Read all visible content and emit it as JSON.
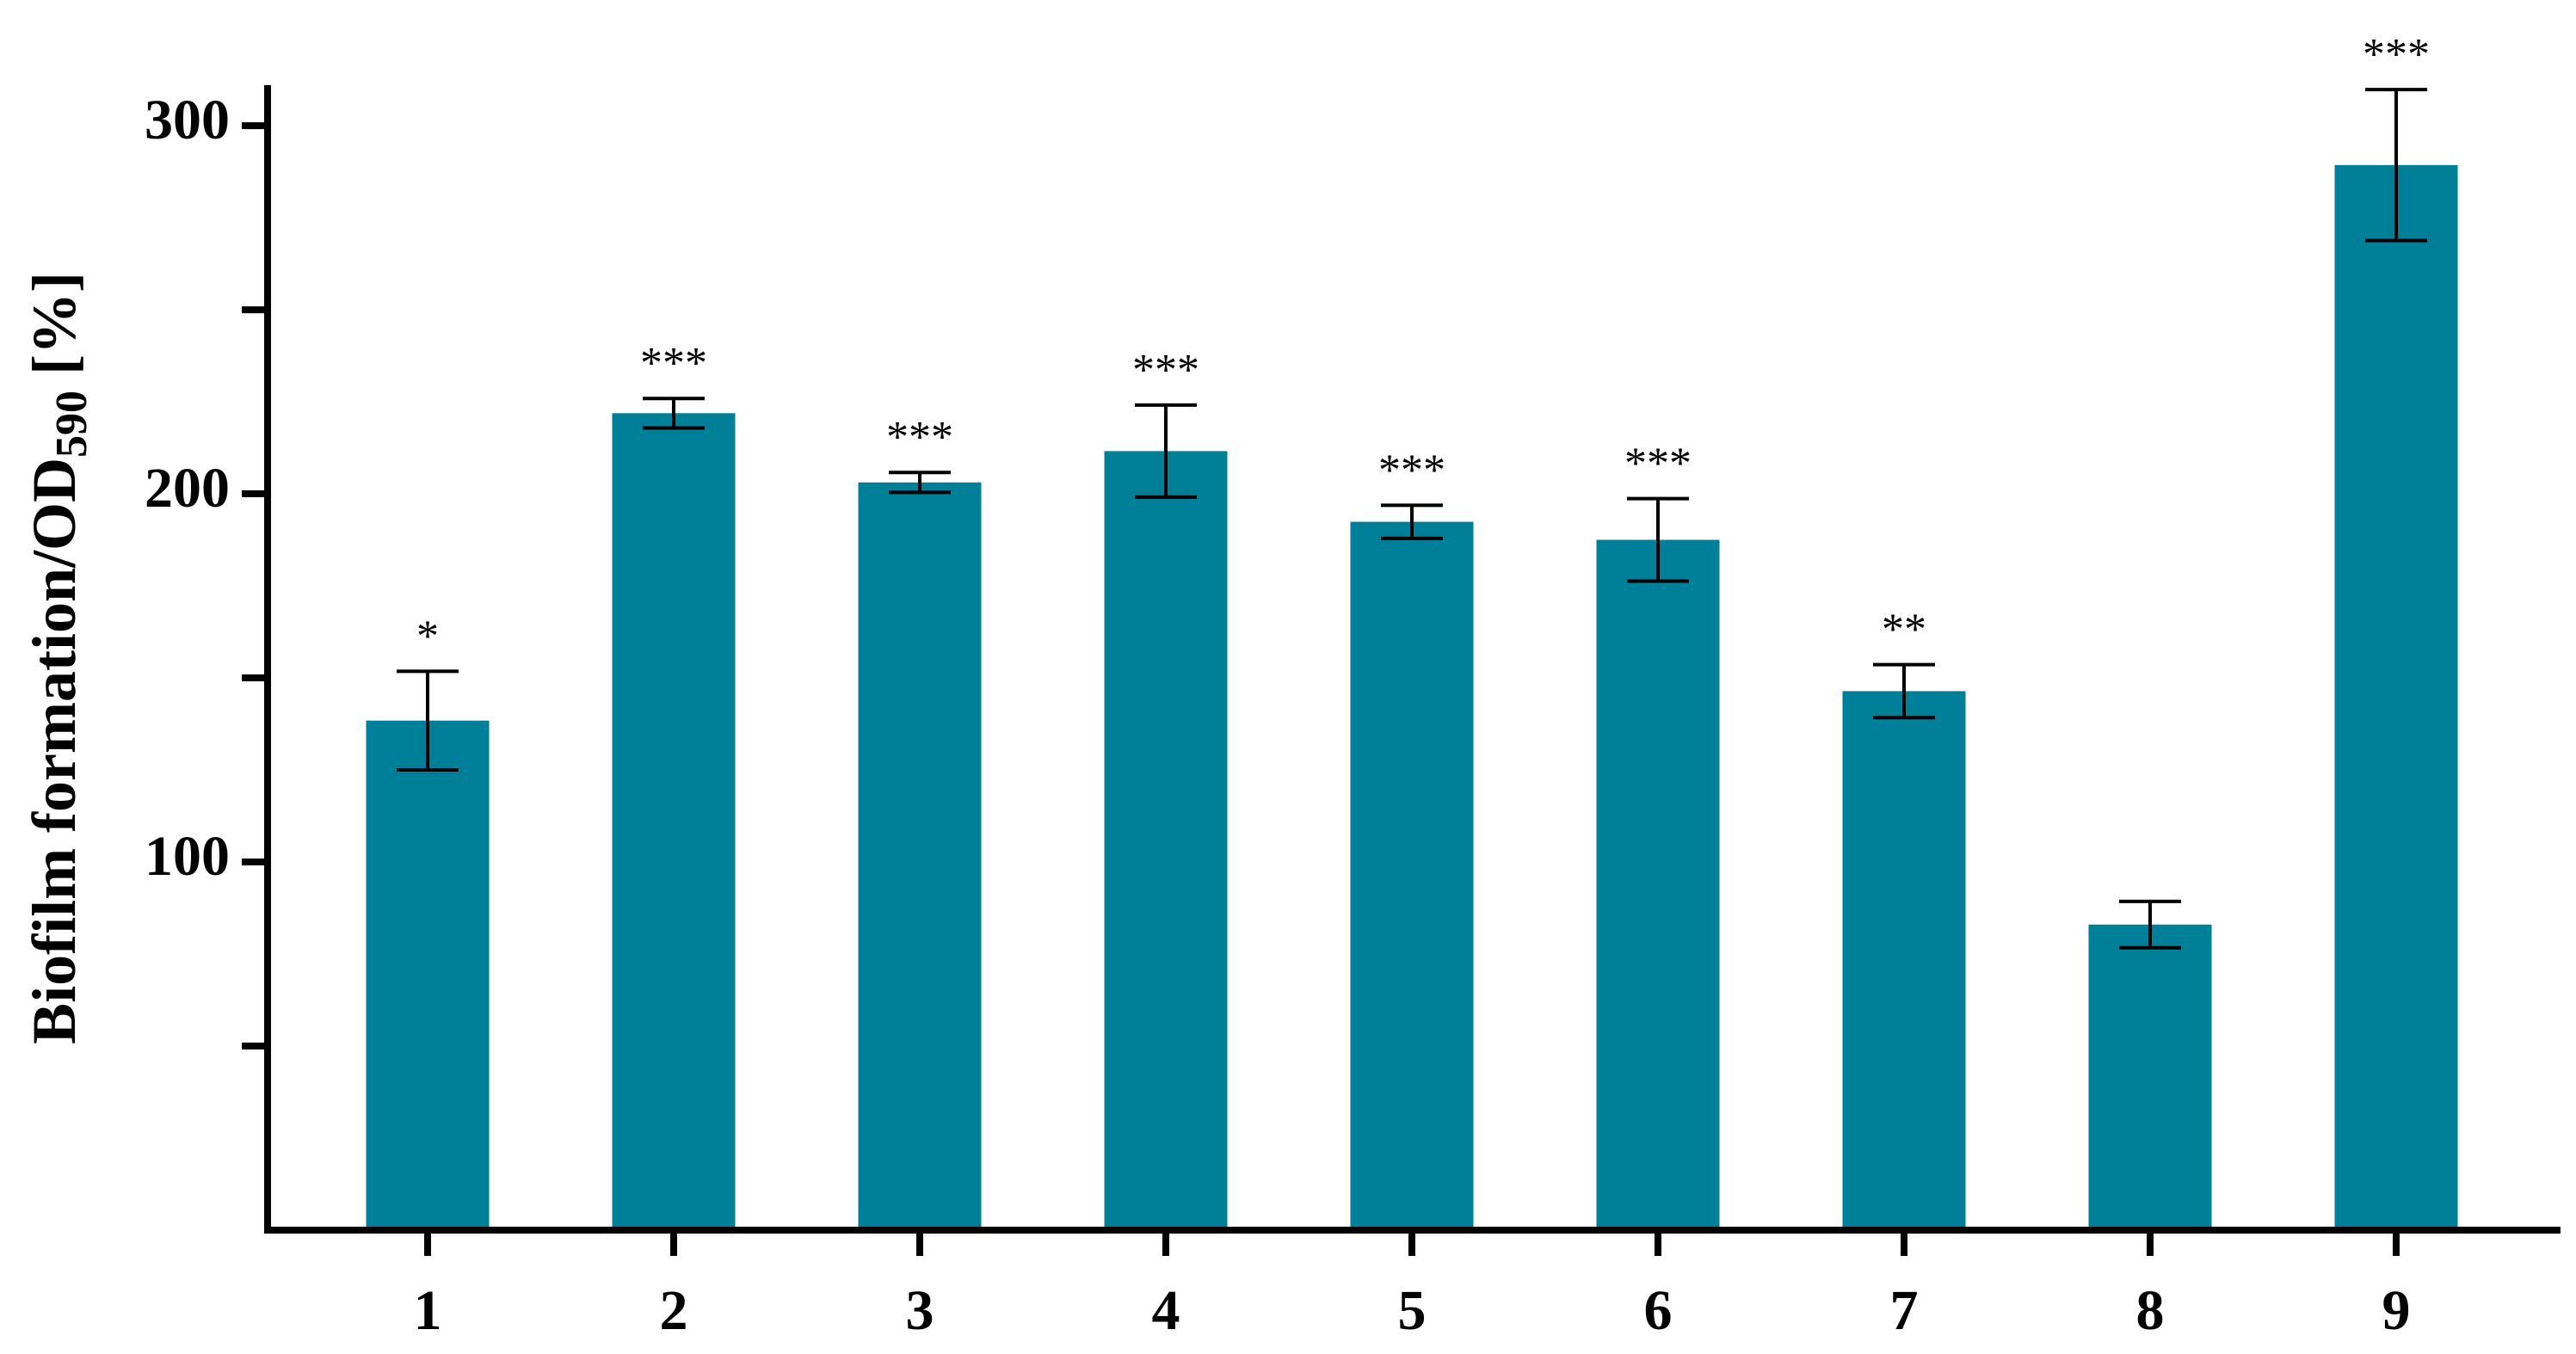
{
  "chart_data": {
    "type": "bar",
    "ylabel": "Biofilm formation/OD",
    "ylabel_sub": "590",
    "ylabel_suffix": " [%]",
    "categories": [
      "1",
      "2",
      "3",
      "4",
      "5",
      "6",
      "7",
      "8",
      "9"
    ],
    "values": [
      138.4,
      221.9,
      203.1,
      211.6,
      192.4,
      187.5,
      146.4,
      83.0,
      289.3
    ],
    "errors": [
      13.4,
      4.0,
      2.7,
      12.5,
      4.5,
      11.2,
      7.2,
      6.3,
      20.5
    ],
    "significance": [
      "*",
      "***",
      "***",
      "***",
      "***",
      "***",
      "**",
      null,
      "***"
    ],
    "color": "#007f99",
    "ylim": [
      0,
      311
    ],
    "yticks": [
      100,
      200,
      300
    ],
    "yticks_minor": [
      50,
      150,
      250
    ]
  }
}
